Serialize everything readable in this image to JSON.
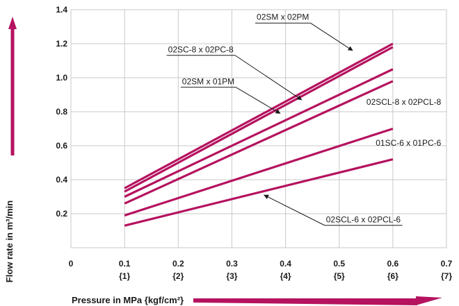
{
  "chart_data": {
    "type": "line",
    "xlabel": "Pressure in MPa {kgf/cm²}",
    "ylabel": "Flow rate in m³/min",
    "xlim": [
      0,
      0.7
    ],
    "ylim": [
      0,
      1.4
    ],
    "x_ticks": [
      {
        "value": 0,
        "label": "0",
        "sub": ""
      },
      {
        "value": 0.1,
        "label": "0.1",
        "sub": "{1}"
      },
      {
        "value": 0.2,
        "label": "0.2",
        "sub": "{2}"
      },
      {
        "value": 0.3,
        "label": "0.3",
        "sub": "{3}"
      },
      {
        "value": 0.4,
        "label": "0.4",
        "sub": "{4}"
      },
      {
        "value": 0.5,
        "label": "0.5",
        "sub": "{5}"
      },
      {
        "value": 0.6,
        "label": "0.6",
        "sub": "{6}"
      },
      {
        "value": 0.7,
        "label": "0.7",
        "sub": "{7}"
      }
    ],
    "y_ticks": [
      {
        "value": 0.2,
        "label": "0.2"
      },
      {
        "value": 0.4,
        "label": "0.4"
      },
      {
        "value": 0.6,
        "label": "0.6"
      },
      {
        "value": 0.8,
        "label": "0.8"
      },
      {
        "value": 1.0,
        "label": "1.0"
      },
      {
        "value": 1.2,
        "label": "1.2"
      },
      {
        "value": 1.4,
        "label": "1.4"
      }
    ],
    "grid": true,
    "line_color": "#b5125f",
    "axis_arrow_color": "#b5125f",
    "series": [
      {
        "name": "02SM x 02PM",
        "x": [
          0.1,
          0.6
        ],
        "y": [
          0.35,
          1.2
        ]
      },
      {
        "name": "02SC-8 x 02PC-8",
        "x": [
          0.1,
          0.6
        ],
        "y": [
          0.33,
          1.18
        ]
      },
      {
        "name": "",
        "x": [
          0.1,
          0.6
        ],
        "y": [
          0.3,
          1.05
        ]
      },
      {
        "name": "02SM x 01PM",
        "x": [
          0.1,
          0.6
        ],
        "y": [
          0.26,
          0.98
        ]
      },
      {
        "name": "01SC-6 x 01PC-6",
        "x": [
          0.1,
          0.6
        ],
        "y": [
          0.19,
          0.7
        ]
      },
      {
        "name": "02SCL-6 x 02PCL-6",
        "x": [
          0.1,
          0.6
        ],
        "y": [
          0.13,
          0.52
        ]
      }
    ],
    "annotations": [
      {
        "text": "02SM x 02PM",
        "series_index": 0,
        "label_x": 0.395,
        "label_y": 1.34,
        "target_x": 0.525,
        "target_y": 1.16,
        "underline": true,
        "anchor": "middle"
      },
      {
        "text": "02SC-8 x 02PC-8",
        "series_index": 1,
        "label_x": 0.242,
        "label_y": 1.15,
        "target_x": 0.43,
        "target_y": 0.87,
        "underline": true,
        "anchor": "middle"
      },
      {
        "text": "02SM x 01PM",
        "series_index": 3,
        "label_x": 0.256,
        "label_y": 0.962,
        "target_x": 0.39,
        "target_y": 0.79,
        "underline": true,
        "anchor": "middle"
      },
      {
        "text": "02SCL-8 x 02PCL-8",
        "series_index": -1,
        "label_x": 0.69,
        "label_y": 0.84,
        "anchor": "end"
      },
      {
        "text": "01SC-6 x 01PC-6",
        "series_index": -1,
        "label_x": 0.69,
        "label_y": 0.6,
        "anchor": "end"
      },
      {
        "text": "02SCL-6 x 02PCL-6",
        "series_index": 5,
        "label_x": 0.545,
        "label_y": 0.15,
        "target_x": 0.36,
        "target_y": 0.31,
        "underline": true,
        "anchor": "middle"
      }
    ]
  }
}
